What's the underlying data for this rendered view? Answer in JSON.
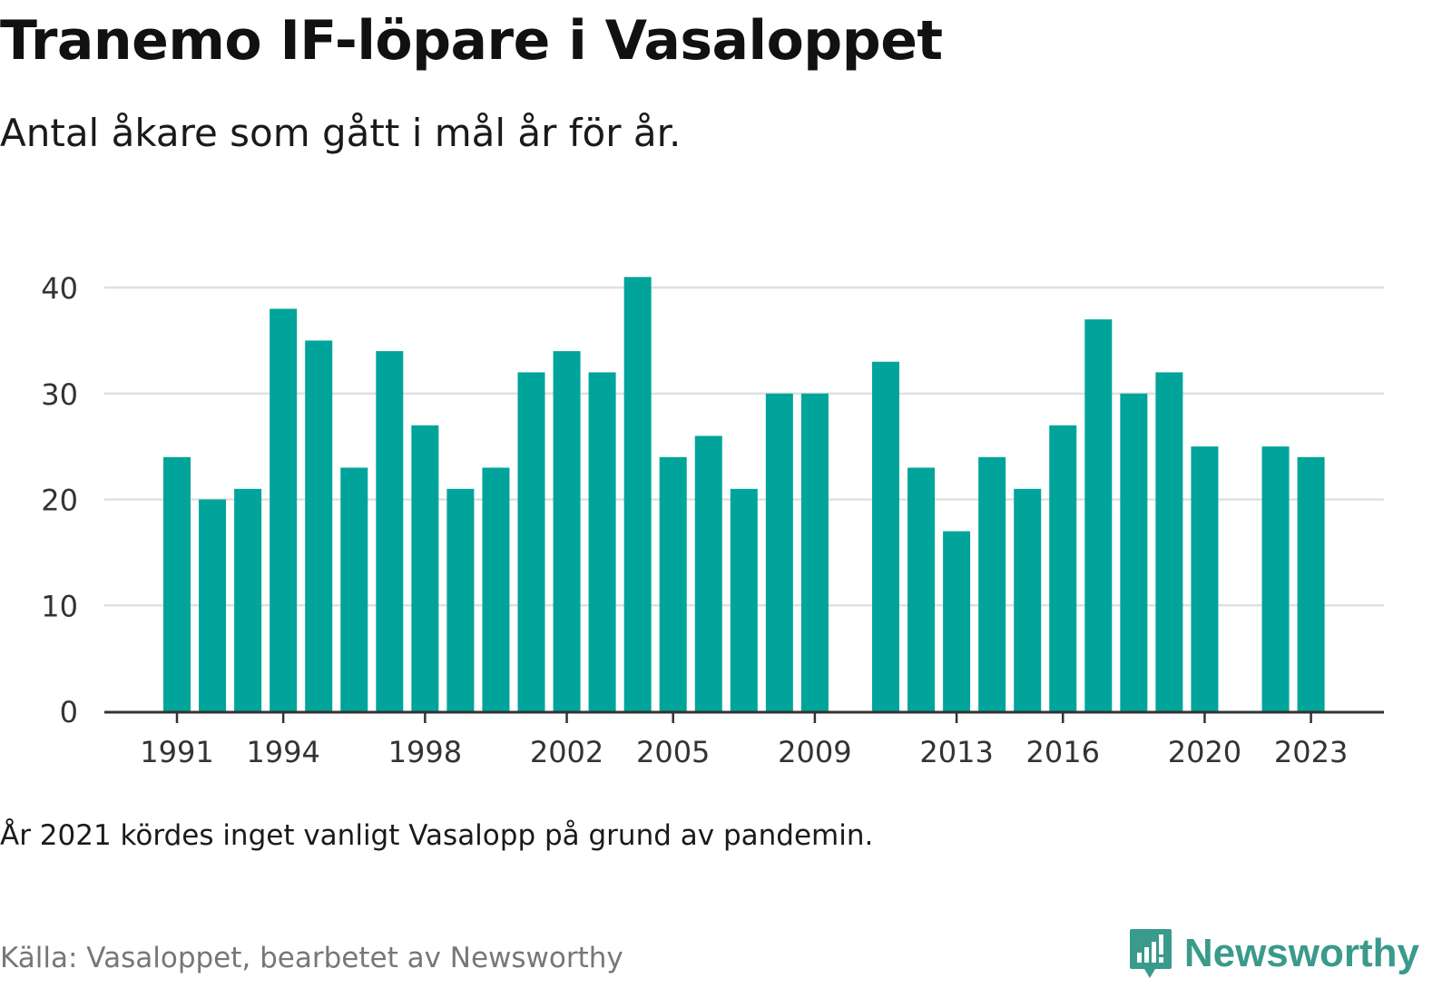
{
  "header": {
    "title": "Tranemo IF-löpare i Vasaloppet",
    "subtitle": "Antal åkare som gått i mål år för år."
  },
  "footer": {
    "note": "År 2021 kördes inget vanligt Vasalopp på grund av pandemin.",
    "source": "Källa: Vasaloppet, bearbetet av Newsworthy",
    "brand": "Newsworthy"
  },
  "colors": {
    "bar": "#00a49a",
    "grid": "#e0e0e0",
    "axis": "#333333",
    "brand": "#3a9a8c"
  },
  "chart_data": {
    "type": "bar",
    "title": "Tranemo IF-löpare i Vasaloppet",
    "subtitle": "Antal åkare som gått i mål år för år.",
    "xlabel": "",
    "ylabel": "",
    "ylim": [
      0,
      42
    ],
    "yticks": [
      0,
      10,
      20,
      30,
      40
    ],
    "xtick_labels": [
      "1991",
      "1994",
      "1998",
      "2002",
      "2005",
      "2009",
      "2013",
      "2016",
      "2020",
      "2023"
    ],
    "grid": true,
    "categories": [
      "1991",
      "1992",
      "1993",
      "1994",
      "1995",
      "1996",
      "1997",
      "1998",
      "1999",
      "2000",
      "2001",
      "2002",
      "2003",
      "2004",
      "2005",
      "2006",
      "2007",
      "2008",
      "2009",
      "2010",
      "2011",
      "2012",
      "2013",
      "2014",
      "2015",
      "2016",
      "2017",
      "2018",
      "2019",
      "2020",
      "2021",
      "2022",
      "2023"
    ],
    "values": [
      24,
      20,
      21,
      38,
      35,
      23,
      34,
      27,
      21,
      23,
      32,
      34,
      32,
      41,
      24,
      26,
      21,
      30,
      30,
      null,
      33,
      23,
      17,
      24,
      21,
      27,
      37,
      30,
      32,
      25,
      null,
      25,
      24
    ]
  }
}
